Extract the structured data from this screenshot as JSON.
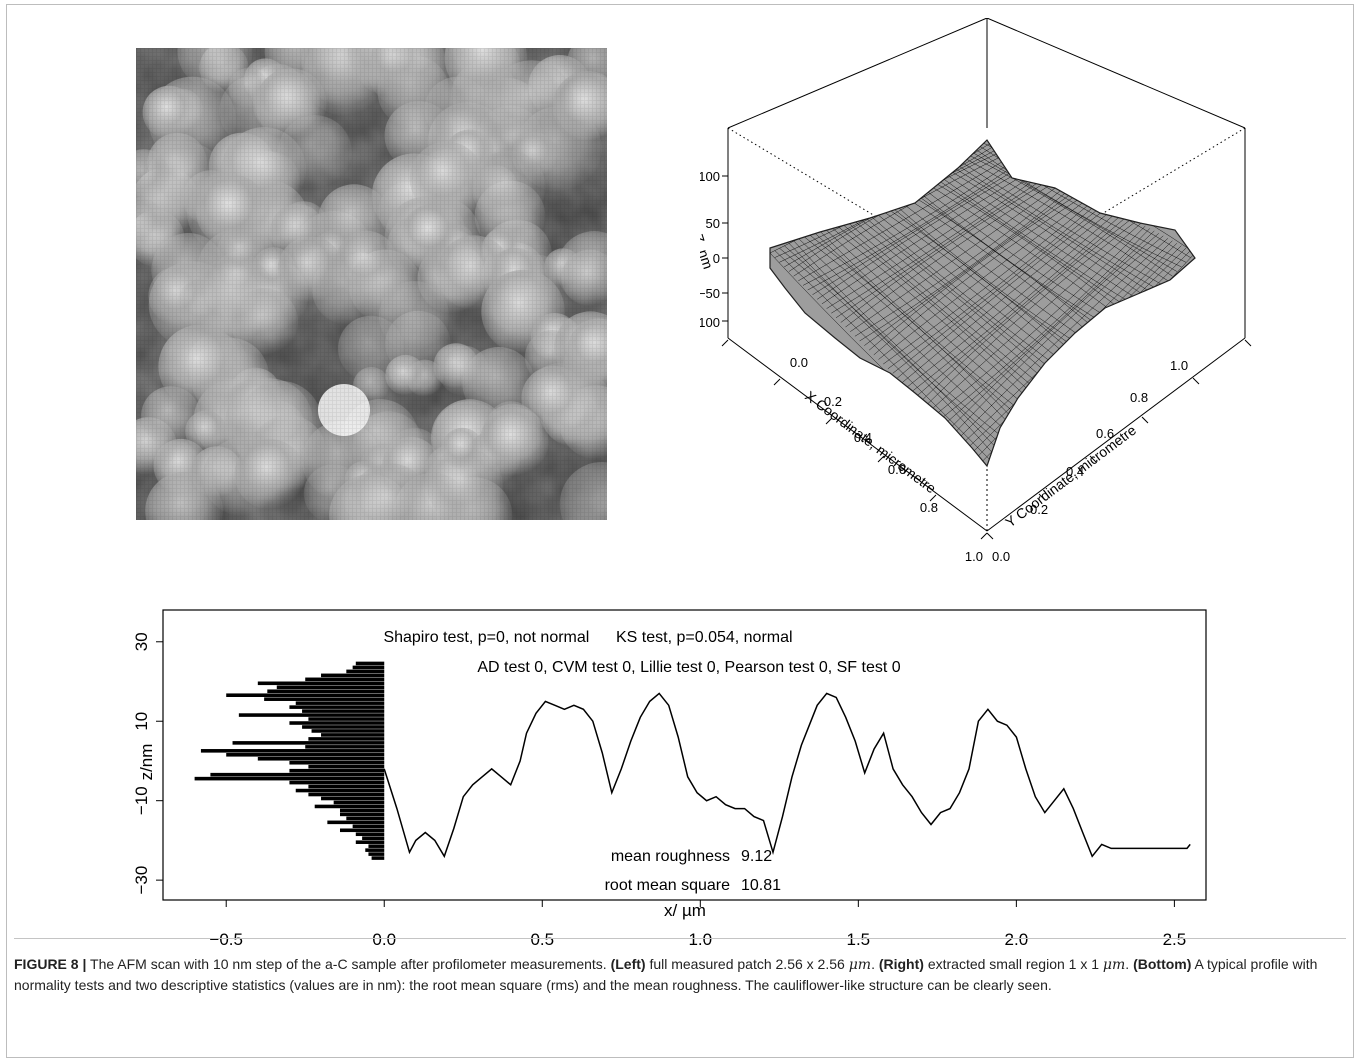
{
  "figure": {
    "afm_image": {
      "alt": "AFM height map of a-C surface",
      "colors": {
        "dark": "#1a1a1a",
        "light": "#f2f2f2"
      }
    },
    "surface_plot": {
      "z_ticks": [
        "100",
        "50",
        "0",
        "−50",
        "−100"
      ],
      "z_label": "Z, nm",
      "x_ticks": [
        "0.0",
        "0.2",
        "0.4",
        "0.6",
        "0.8",
        "1.0"
      ],
      "x_label": "X Coordinate, micrometre",
      "y_ticks": [
        "0.0",
        "0.2",
        "0.4",
        "0.6",
        "0.8",
        "1.0"
      ],
      "y_label": "Y Coordinate, micrometre",
      "colors": {
        "fill": "#9d9d9d",
        "mesh": "#111111"
      }
    },
    "profile_plot": {
      "line1": "Shapiro test, p=0, not normal      KS test, p=0.054, normal",
      "line2": "AD test 0, CVM test 0, Lillie test 0, Pearson test 0, SF test 0",
      "stat1_label": "mean roughness",
      "stat1_value": "9.12",
      "stat2_label": "root mean square",
      "stat2_value": "10.81",
      "x_label": "x/ µm",
      "y_label": "z/nm"
    },
    "caption": {
      "label": "FIGURE 8 |",
      "text1": " The AFM scan with 10 nm step of the a-C sample after profilometer measurements. ",
      "left": "(Left)",
      "text2": " full measured patch 2.56 x 2.56 ",
      "unit1": "μm",
      "text3": ". ",
      "right": "(Right)",
      "text4": " extracted small region 1 x 1 ",
      "unit2": "μm",
      "text5": ". ",
      "bottom": "(Bottom)",
      "text6": " A typical profile with normality tests and two descriptive statistics (values are in nm): the root mean square (rms) and the mean roughness. The cauliflower-like structure can be clearly seen."
    }
  },
  "chart_data": {
    "type": "line",
    "xlabel": "x/ µm",
    "ylabel": "z/nm",
    "xlim": [
      -0.7,
      2.6
    ],
    "ylim": [
      -35,
      38
    ],
    "x_ticks": [
      -0.5,
      0.0,
      0.5,
      1.0,
      1.5,
      2.0,
      2.5
    ],
    "y_ticks": [
      -30,
      -10,
      10,
      30
    ],
    "annotations": [
      "Shapiro test, p=0, not normal      KS test, p=0.054, normal",
      "AD test 0, CVM test 0, Lillie test 0, Pearson test 0, SF test 0",
      "mean roughness 9.12",
      "root mean square 10.81"
    ],
    "profile": {
      "x": [
        0.0,
        0.04,
        0.08,
        0.1,
        0.13,
        0.16,
        0.19,
        0.22,
        0.25,
        0.28,
        0.31,
        0.34,
        0.37,
        0.4,
        0.43,
        0.45,
        0.48,
        0.51,
        0.54,
        0.57,
        0.6,
        0.63,
        0.66,
        0.69,
        0.72,
        0.75,
        0.78,
        0.81,
        0.84,
        0.87,
        0.9,
        0.93,
        0.96,
        0.99,
        1.02,
        1.05,
        1.08,
        1.11,
        1.14,
        1.17,
        1.2,
        1.23,
        1.26,
        1.29,
        1.32,
        1.35,
        1.37,
        1.4,
        1.43,
        1.46,
        1.49,
        1.52,
        1.55,
        1.58,
        1.61,
        1.64,
        1.67,
        1.7,
        1.73,
        1.76,
        1.79,
        1.82,
        1.85,
        1.88,
        1.91,
        1.94,
        1.97,
        2.0,
        2.03,
        2.06,
        2.09,
        2.12,
        2.15,
        2.18,
        2.21,
        2.24,
        2.27,
        2.3,
        2.33,
        2.36,
        2.39,
        2.42,
        2.45,
        2.48,
        2.51,
        2.54,
        2.55
      ],
      "z": [
        -2,
        -12,
        -23,
        -20,
        -18,
        -20,
        -24,
        -17,
        -9,
        -6,
        -4,
        -2,
        -4,
        -6,
        0,
        7,
        12,
        15,
        14,
        13,
        14,
        13,
        10,
        2,
        -8,
        -2,
        5,
        11,
        15,
        17,
        14,
        6,
        -4,
        -8,
        -10,
        -9,
        -11,
        -12,
        -12,
        -14,
        -15,
        -23,
        -14,
        -4,
        4,
        10,
        14,
        17,
        16,
        11,
        5,
        -3,
        3,
        7,
        -2,
        -6,
        -9,
        -13,
        -16,
        -13,
        -12,
        -8,
        -2,
        10,
        13,
        10,
        9,
        6,
        -2,
        -9,
        -13,
        -10,
        -7,
        -12,
        -18,
        -24,
        -21,
        -22,
        -22,
        -22,
        -22,
        -22,
        -22,
        -22,
        -22,
        -22,
        -21
      ]
    },
    "histogram": {
      "note": "horizontal histogram bars extending left from x=0",
      "z": [
        24.5,
        23.5,
        22.5,
        21.5,
        20.5,
        19.5,
        18.5,
        17.5,
        16.5,
        15.5,
        14.5,
        13.5,
        12.5,
        11.5,
        10.5,
        9.5,
        8.5,
        7.5,
        6.5,
        5.5,
        4.5,
        3.5,
        2.5,
        1.5,
        0.5,
        -0.5,
        -1.5,
        -2.5,
        -3.5,
        -4.5,
        -5.5,
        -6.5,
        -7.5,
        -8.5,
        -9.5,
        -10.5,
        -11.5,
        -12.5,
        -13.5,
        -14.5,
        -15.5,
        -16.5,
        -17.5,
        -18.5,
        -19.5,
        -20.5,
        -21.5,
        -22.5,
        -23.5,
        -24.5
      ],
      "width": [
        0.09,
        0.1,
        0.12,
        0.2,
        0.25,
        0.4,
        0.34,
        0.37,
        0.5,
        0.38,
        0.28,
        0.3,
        0.26,
        0.46,
        0.24,
        0.3,
        0.26,
        0.23,
        0.2,
        0.24,
        0.48,
        0.25,
        0.58,
        0.5,
        0.4,
        0.3,
        0.24,
        0.3,
        0.55,
        0.6,
        0.3,
        0.24,
        0.28,
        0.24,
        0.2,
        0.16,
        0.22,
        0.14,
        0.14,
        0.12,
        0.18,
        0.1,
        0.14,
        0.09,
        0.07,
        0.09,
        0.05,
        0.06,
        0.05,
        0.04
      ]
    }
  }
}
